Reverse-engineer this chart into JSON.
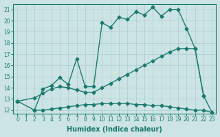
{
  "line1_x": [
    2,
    3,
    4,
    5,
    6,
    7,
    8,
    9,
    10,
    11,
    12,
    13,
    14,
    15,
    16,
    17,
    18,
    19,
    20,
    21,
    22
  ],
  "line1_y": [
    12.0,
    13.9,
    14.2,
    14.9,
    14.3,
    16.6,
    14.1,
    14.1,
    19.8,
    19.4,
    20.3,
    20.1,
    20.8,
    20.5,
    21.2,
    20.4,
    21.0,
    21.0,
    19.3,
    17.5,
    13.3
  ],
  "line2_x": [
    0,
    2,
    3,
    4,
    5,
    6,
    7,
    8,
    9,
    10,
    11,
    12,
    13,
    14,
    15,
    16,
    17,
    18,
    19,
    20,
    21,
    22,
    23
  ],
  "line2_y": [
    12.8,
    13.1,
    13.5,
    13.9,
    14.1,
    14.0,
    13.8,
    13.6,
    13.6,
    14.0,
    14.4,
    14.8,
    15.2,
    15.6,
    16.0,
    16.4,
    16.8,
    17.2,
    17.5,
    17.5,
    17.5,
    13.3,
    11.8
  ],
  "line3_x": [
    0,
    2,
    3,
    4,
    5,
    6,
    7,
    8,
    9,
    10,
    11,
    12,
    13,
    14,
    15,
    16,
    17,
    18,
    19,
    20,
    21,
    22,
    23
  ],
  "line3_y": [
    12.8,
    12.0,
    12.0,
    12.1,
    12.2,
    12.3,
    12.4,
    12.5,
    12.5,
    12.6,
    12.6,
    12.6,
    12.6,
    12.5,
    12.5,
    12.4,
    12.4,
    12.3,
    12.2,
    12.1,
    12.0,
    12.0,
    11.8
  ],
  "color": "#1a7a6e",
  "bg_color": "#cce4e4",
  "grid_color": "#aacece",
  "xlabel": "Humidex (Indice chaleur)",
  "xlim": [
    -0.5,
    23.5
  ],
  "ylim": [
    11.7,
    21.5
  ],
  "yticks": [
    12,
    13,
    14,
    15,
    16,
    17,
    18,
    19,
    20,
    21
  ],
  "xticks": [
    0,
    1,
    2,
    3,
    4,
    5,
    6,
    7,
    8,
    9,
    10,
    11,
    12,
    13,
    14,
    15,
    16,
    17,
    18,
    19,
    20,
    21,
    22,
    23
  ],
  "marker": "D",
  "markersize": 2.5,
  "linewidth": 1.0,
  "fontsize_label": 7,
  "fontsize_tick": 5.5
}
